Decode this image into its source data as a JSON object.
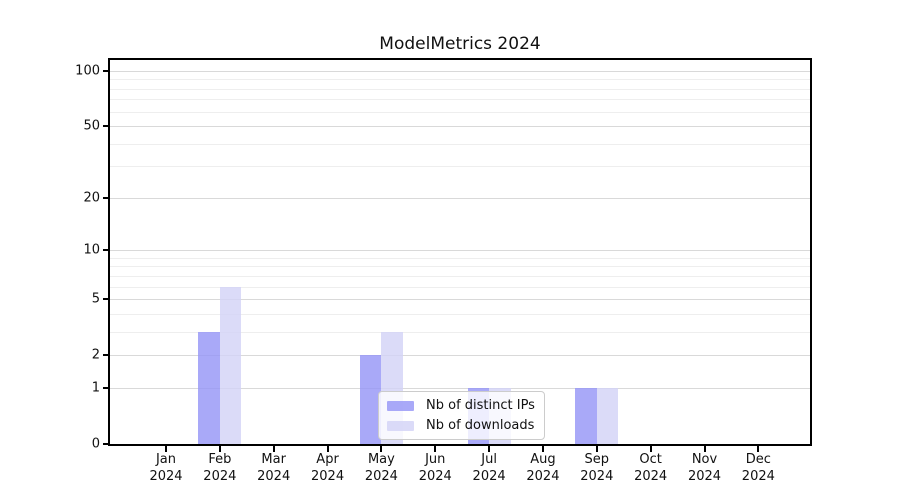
{
  "chart_data": {
    "type": "bar",
    "title": "ModelMetrics 2024",
    "categories": [
      "Jan",
      "Feb",
      "Mar",
      "Apr",
      "May",
      "Jun",
      "Jul",
      "Aug",
      "Sep",
      "Oct",
      "Nov",
      "Dec"
    ],
    "category_year": "2024",
    "series": [
      {
        "name": "Nb of distinct IPs",
        "color": "#9494f6",
        "values": [
          0,
          3,
          0,
          0,
          2,
          0,
          1,
          0,
          1,
          0,
          0,
          0
        ]
      },
      {
        "name": "Nb of downloads",
        "color": "#d2d2f6",
        "values": [
          0,
          6,
          0,
          0,
          3,
          0,
          1,
          0,
          1,
          0,
          0,
          0
        ]
      }
    ],
    "xlabel": "",
    "ylabel": "",
    "yscale": "log1p",
    "ylim": [
      0,
      115
    ],
    "yticks": [
      0,
      1,
      2,
      5,
      10,
      20,
      50,
      100
    ],
    "minor_yticks": [
      3,
      4,
      6,
      7,
      8,
      9,
      30,
      40,
      60,
      70,
      80,
      90
    ],
    "grid": true,
    "legend_position": "lower-center",
    "colors": {
      "major_grid": "#d9d9d9",
      "minor_grid": "#eeeeee",
      "axis": "#000000",
      "text": "#111111"
    }
  }
}
